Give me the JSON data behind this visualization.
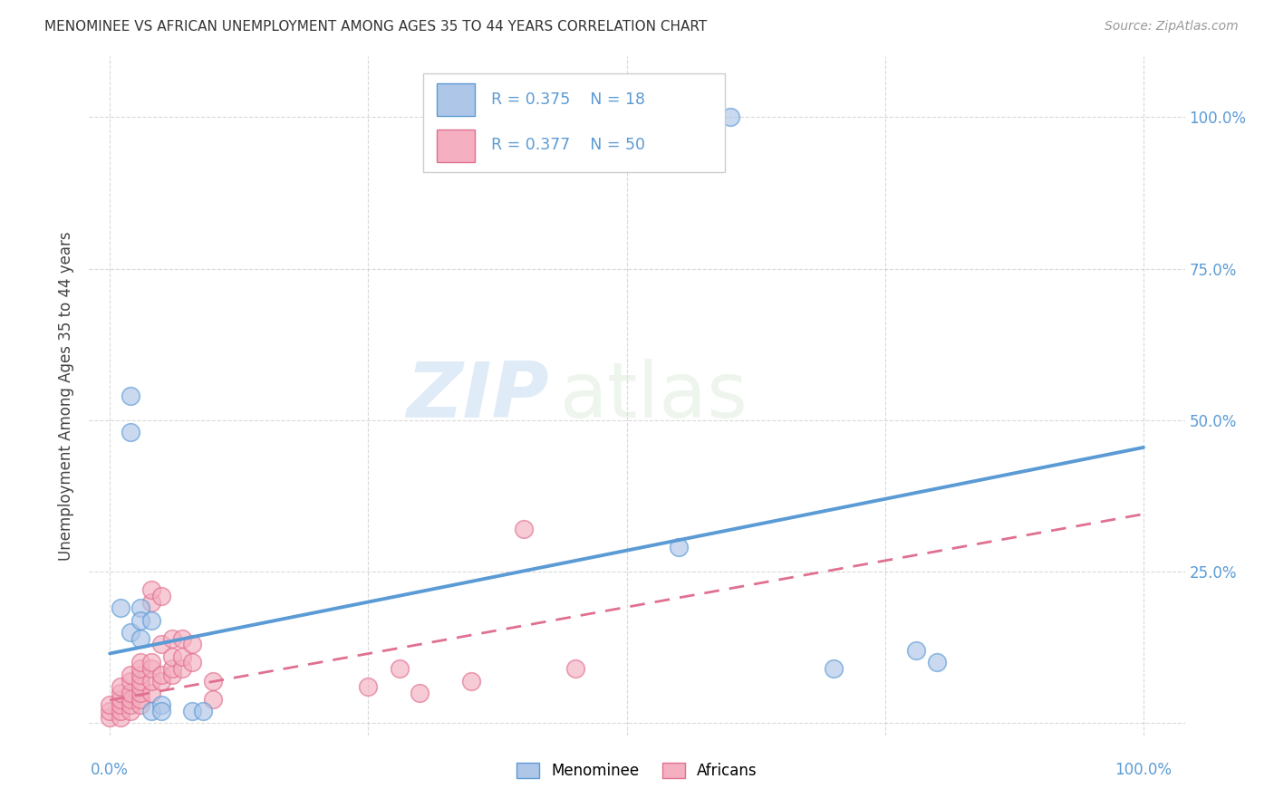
{
  "title": "MENOMINEE VS AFRICAN UNEMPLOYMENT AMONG AGES 35 TO 44 YEARS CORRELATION CHART",
  "source": "Source: ZipAtlas.com",
  "ylabel": "Unemployment Among Ages 35 to 44 years",
  "legend_r_menominee": "R = 0.375",
  "legend_n_menominee": "N = 18",
  "legend_r_african": "R = 0.377",
  "legend_n_african": "N = 50",
  "menominee_color": "#aec6e8",
  "african_color": "#f4afc0",
  "menominee_line_color": "#5b9bd5",
  "african_line_color": "#e07090",
  "tick_label_color": "#5b9bd5",
  "menominee_scatter": [
    [
      0.01,
      0.19
    ],
    [
      0.02,
      0.15
    ],
    [
      0.02,
      0.54
    ],
    [
      0.02,
      0.48
    ],
    [
      0.03,
      0.19
    ],
    [
      0.03,
      0.17
    ],
    [
      0.03,
      0.14
    ],
    [
      0.04,
      0.02
    ],
    [
      0.04,
      0.17
    ],
    [
      0.05,
      0.03
    ],
    [
      0.05,
      0.02
    ],
    [
      0.08,
      0.02
    ],
    [
      0.09,
      0.02
    ],
    [
      0.55,
      0.29
    ],
    [
      0.6,
      1.0
    ],
    [
      0.7,
      0.09
    ],
    [
      0.78,
      0.12
    ],
    [
      0.8,
      0.1
    ]
  ],
  "african_scatter": [
    [
      0.0,
      0.01
    ],
    [
      0.0,
      0.02
    ],
    [
      0.0,
      0.03
    ],
    [
      0.01,
      0.01
    ],
    [
      0.01,
      0.02
    ],
    [
      0.01,
      0.03
    ],
    [
      0.01,
      0.04
    ],
    [
      0.01,
      0.05
    ],
    [
      0.01,
      0.06
    ],
    [
      0.02,
      0.02
    ],
    [
      0.02,
      0.03
    ],
    [
      0.02,
      0.04
    ],
    [
      0.02,
      0.05
    ],
    [
      0.02,
      0.07
    ],
    [
      0.02,
      0.08
    ],
    [
      0.03,
      0.03
    ],
    [
      0.03,
      0.04
    ],
    [
      0.03,
      0.05
    ],
    [
      0.03,
      0.06
    ],
    [
      0.03,
      0.07
    ],
    [
      0.03,
      0.08
    ],
    [
      0.03,
      0.09
    ],
    [
      0.03,
      0.1
    ],
    [
      0.04,
      0.05
    ],
    [
      0.04,
      0.07
    ],
    [
      0.04,
      0.09
    ],
    [
      0.04,
      0.1
    ],
    [
      0.04,
      0.2
    ],
    [
      0.04,
      0.22
    ],
    [
      0.05,
      0.07
    ],
    [
      0.05,
      0.08
    ],
    [
      0.05,
      0.13
    ],
    [
      0.05,
      0.21
    ],
    [
      0.06,
      0.08
    ],
    [
      0.06,
      0.09
    ],
    [
      0.06,
      0.11
    ],
    [
      0.06,
      0.14
    ],
    [
      0.07,
      0.09
    ],
    [
      0.07,
      0.11
    ],
    [
      0.07,
      0.14
    ],
    [
      0.08,
      0.1
    ],
    [
      0.08,
      0.13
    ],
    [
      0.1,
      0.04
    ],
    [
      0.1,
      0.07
    ],
    [
      0.25,
      0.06
    ],
    [
      0.28,
      0.09
    ],
    [
      0.3,
      0.05
    ],
    [
      0.35,
      0.07
    ],
    [
      0.4,
      0.32
    ],
    [
      0.45,
      0.09
    ]
  ],
  "menominee_trend_x": [
    0.0,
    1.0
  ],
  "menominee_trend_y": [
    0.115,
    0.455
  ],
  "african_trend_x": [
    0.0,
    1.0
  ],
  "african_trend_y": [
    0.038,
    0.345
  ],
  "watermark_zip": "ZIP",
  "watermark_atlas": "atlas",
  "background_color": "#ffffff",
  "grid_color": "#d0d0d0",
  "y_ticks": [
    0.0,
    0.25,
    0.5,
    0.75,
    1.0
  ],
  "right_y_labels": [
    "",
    "25.0%",
    "50.0%",
    "75.0%",
    "100.0%"
  ],
  "x_ticks": [
    0.0,
    0.25,
    0.5,
    0.75,
    1.0
  ],
  "xlim": [
    -0.02,
    1.04
  ],
  "ylim": [
    -0.02,
    1.1
  ]
}
